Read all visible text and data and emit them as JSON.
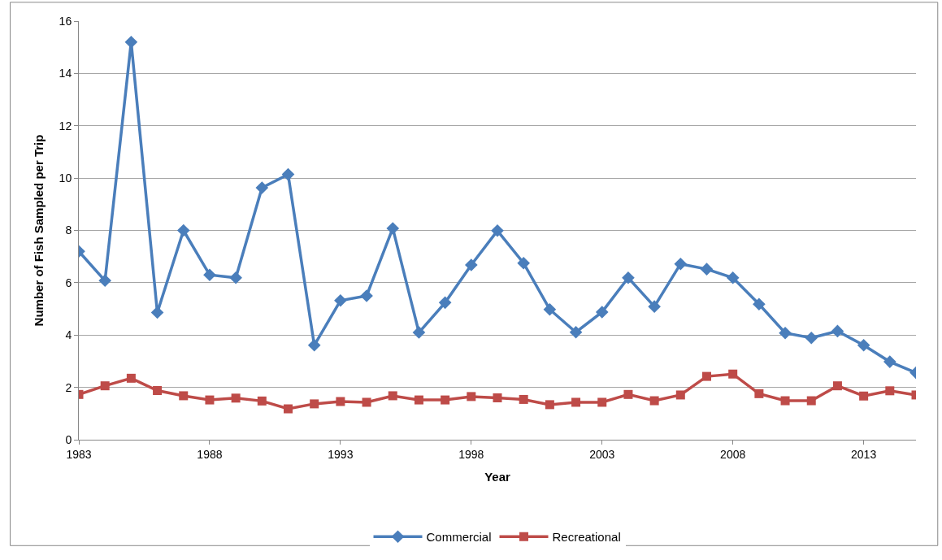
{
  "chart_data": {
    "type": "line",
    "xlabel": "Year",
    "ylabel": "Number of Fish Sampled per Trip",
    "x": [
      1983,
      1984,
      1985,
      1986,
      1987,
      1988,
      1989,
      1990,
      1991,
      1992,
      1993,
      1994,
      1995,
      1996,
      1997,
      1998,
      1999,
      2000,
      2001,
      2002,
      2003,
      2004,
      2005,
      2006,
      2007,
      2008,
      2009,
      2010,
      2011,
      2012,
      2013,
      2014,
      2015
    ],
    "series": [
      {
        "name": "Commercial",
        "color": "#4a7ebb",
        "marker": "diamond",
        "values": [
          7.2,
          6.08,
          15.2,
          4.86,
          8.0,
          6.3,
          6.19,
          9.63,
          10.14,
          3.61,
          5.32,
          5.5,
          8.08,
          4.1,
          5.24,
          6.68,
          7.99,
          6.75,
          4.98,
          4.11,
          4.88,
          6.19,
          5.09,
          6.72,
          6.52,
          6.19,
          5.18,
          4.08,
          3.89,
          4.15,
          3.61,
          2.98,
          2.56
        ]
      },
      {
        "name": "Recreational",
        "color": "#be4b48",
        "marker": "square",
        "values": [
          1.73,
          2.06,
          2.35,
          1.88,
          1.68,
          1.52,
          1.59,
          1.48,
          1.18,
          1.37,
          1.46,
          1.43,
          1.68,
          1.52,
          1.52,
          1.65,
          1.6,
          1.54,
          1.34,
          1.43,
          1.43,
          1.73,
          1.49,
          1.71,
          2.42,
          2.51,
          1.76,
          1.49,
          1.49,
          2.06,
          1.67,
          1.87,
          1.71
        ]
      }
    ],
    "xlim": [
      1983,
      2015
    ],
    "xticks": [
      1983,
      1988,
      1993,
      1998,
      2003,
      2008,
      2013
    ],
    "ylim": [
      0,
      16
    ],
    "yticks": [
      0,
      2,
      4,
      6,
      8,
      10,
      12,
      14,
      16
    ],
    "grid": "y",
    "legend": "bottom",
    "line_style": "solid"
  }
}
